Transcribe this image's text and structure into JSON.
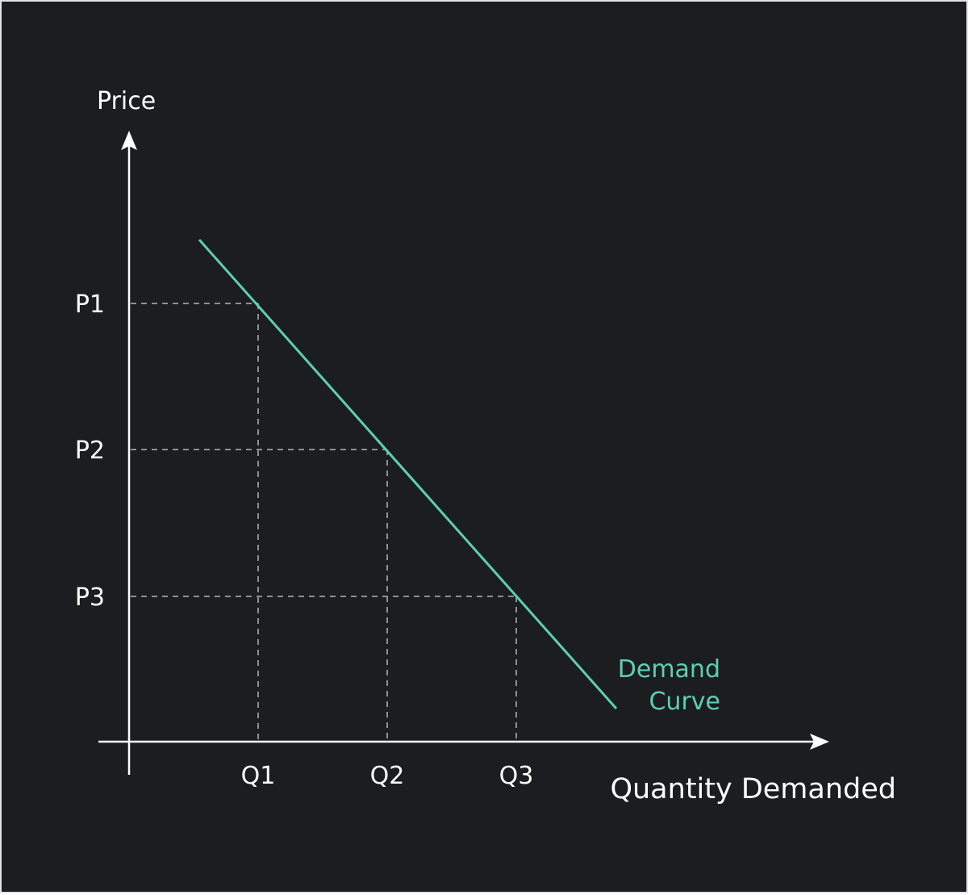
{
  "chart_data": {
    "type": "line",
    "title": "",
    "xlabel": "Quantity Demanded",
    "ylabel": "Price",
    "x_ticks": [
      "Q1",
      "Q2",
      "Q3"
    ],
    "y_ticks": [
      "P1",
      "P2",
      "P3"
    ],
    "series": [
      {
        "name": "Demand Curve",
        "name_lines": [
          "Demand",
          "Curve"
        ],
        "shape": "downward-sloping straight line",
        "points": [
          {
            "x": "Q1",
            "y": "P1"
          },
          {
            "x": "Q2",
            "y": "P2"
          },
          {
            "x": "Q3",
            "y": "P3"
          }
        ]
      }
    ],
    "reference_lines": "dashed",
    "grid": false,
    "legend": "none",
    "colors": {
      "background": "#1c1d20",
      "axes": "#ffffff",
      "curve": "#5ccfb4",
      "guides": "#8d8f93"
    }
  }
}
